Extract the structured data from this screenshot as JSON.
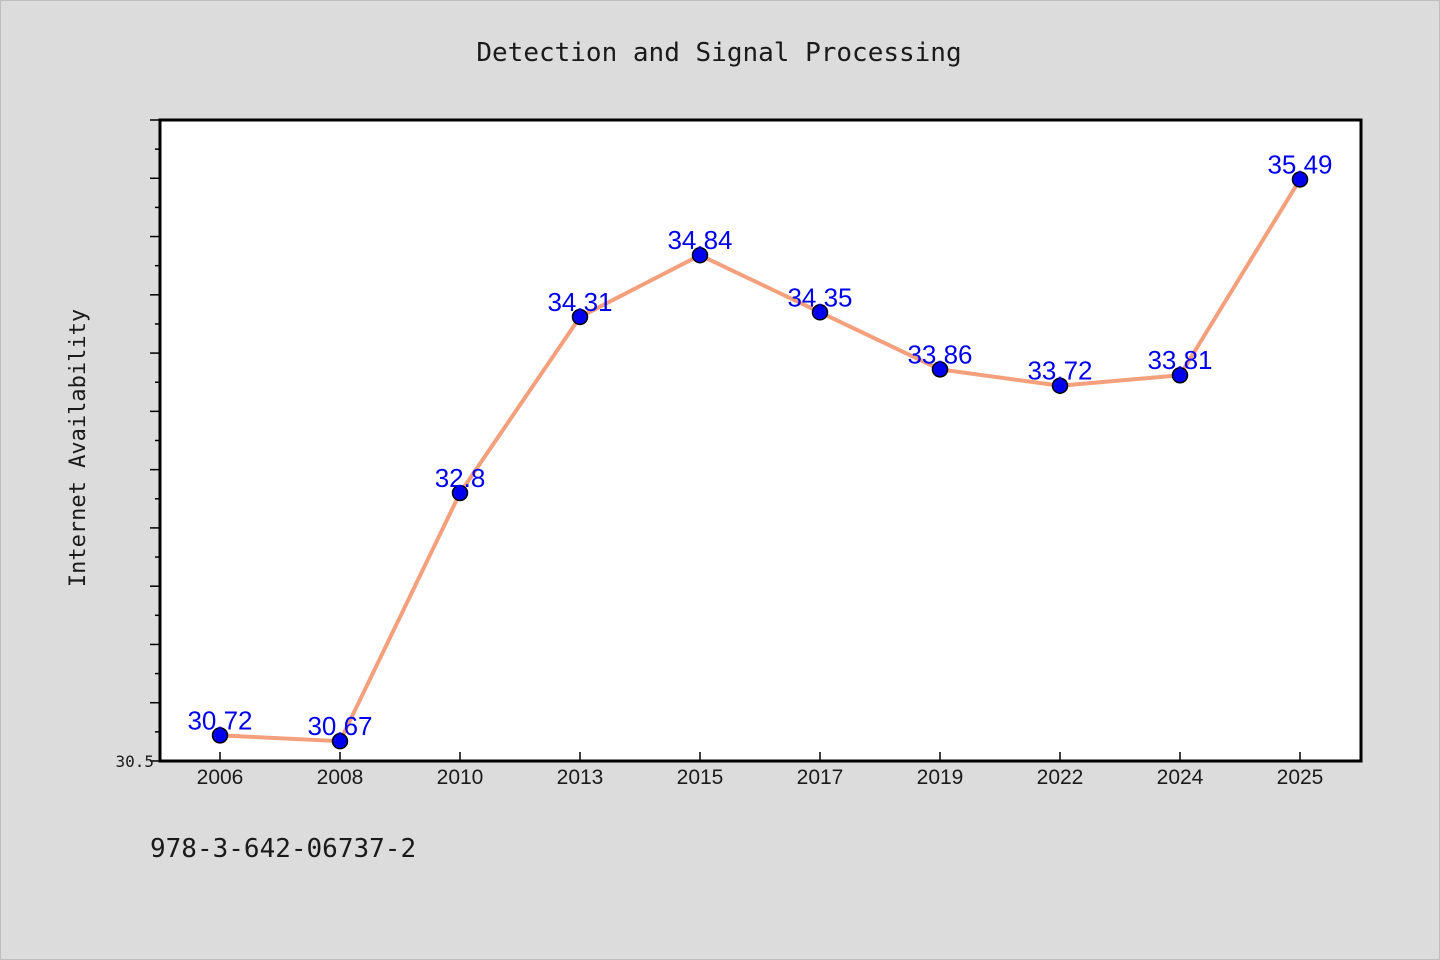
{
  "chart_data": {
    "type": "line",
    "title": "Detection and Signal Processing",
    "xlabel": "",
    "ylabel": "Internet Availability",
    "categories": [
      "2006",
      "2008",
      "2010",
      "2013",
      "2015",
      "2017",
      "2019",
      "2022",
      "2024",
      "2025"
    ],
    "series": [
      {
        "values": [
          30.72,
          30.67,
          32.8,
          34.31,
          34.84,
          34.35,
          33.86,
          33.72,
          33.81,
          35.49
        ],
        "labels": [
          "30.72",
          "30.67",
          "32.8",
          "34.31",
          "34.84",
          "34.35",
          "33.86",
          "33.72",
          "33.81",
          "35.49"
        ]
      }
    ],
    "y_tick_labels": [
      "30.5"
    ],
    "ylim": [
      30.5,
      36.0
    ],
    "grid": false,
    "legend": "none",
    "colors": {
      "line": "#f4a07c",
      "marker": "#0000ee",
      "data_label": "#0000ee",
      "background": "#dcdcdc",
      "plot_area": "#ffffff"
    }
  },
  "footnote": "978-3-642-06737-2"
}
